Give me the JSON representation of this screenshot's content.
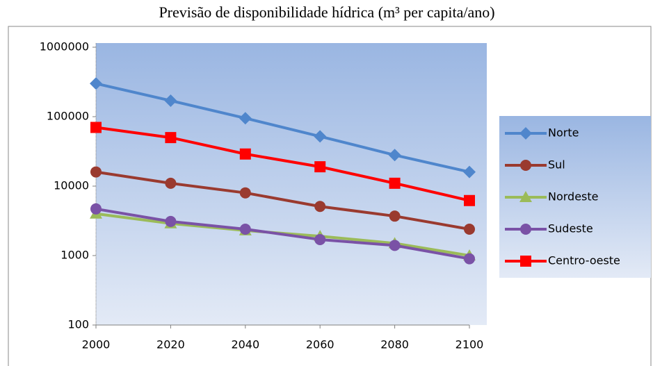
{
  "chart_data": {
    "type": "line",
    "title": "Previsão de disponibilidade hídrica (m³ per capita/ano)",
    "x": [
      2000,
      2020,
      2040,
      2060,
      2080,
      2100
    ],
    "xlim": [
      2000,
      2100
    ],
    "xticks": [
      2000,
      2020,
      2040,
      2060,
      2080,
      2100
    ],
    "ylim": [
      100,
      1000000
    ],
    "yticks": [
      100,
      1000,
      10000,
      100000,
      1000000
    ],
    "log_scale": true,
    "legend": "right",
    "series": [
      {
        "name": "Norte",
        "color": "#4f86cc",
        "marker": "diamond",
        "values": [
          300000,
          170000,
          95000,
          52000,
          28000,
          16000
        ]
      },
      {
        "name": "Sul",
        "color": "#9a3a2f",
        "marker": "circle",
        "values": [
          16000,
          11000,
          8000,
          5100,
          3700,
          2400
        ]
      },
      {
        "name": "Nordeste",
        "color": "#9bbb59",
        "marker": "triangle",
        "values": [
          4000,
          2900,
          2300,
          1900,
          1500,
          1000
        ]
      },
      {
        "name": "Sudeste",
        "color": "#7a52a6",
        "marker": "circle",
        "values": [
          4700,
          3100,
          2400,
          1700,
          1400,
          900
        ]
      },
      {
        "name": "Centro-oeste",
        "color": "#ff0000",
        "marker": "square",
        "values": [
          70000,
          50000,
          29000,
          19000,
          11000,
          6200
        ]
      }
    ]
  }
}
